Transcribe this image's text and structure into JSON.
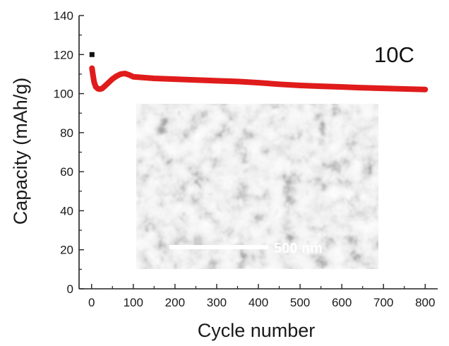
{
  "chart_data": {
    "type": "line",
    "xlabel": "Cycle number",
    "ylabel": "Capacity (mAh/g)",
    "xlim": [
      -30,
      830
    ],
    "ylim": [
      0,
      140
    ],
    "xticks": [
      0,
      100,
      200,
      300,
      400,
      500,
      600,
      700,
      800
    ],
    "yticks": [
      0,
      20,
      40,
      60,
      80,
      100,
      120,
      140
    ],
    "grid": false,
    "annotation": "10C",
    "series": [
      {
        "color": "#e01b1b",
        "x": [
          1,
          3,
          6,
          10,
          15,
          20,
          25,
          30,
          40,
          50,
          60,
          70,
          80,
          90,
          100,
          150,
          200,
          250,
          300,
          350,
          400,
          450,
          500,
          550,
          600,
          650,
          700,
          750,
          800
        ],
        "y": [
          113,
          110,
          106,
          103.5,
          102.5,
          102.3,
          102.6,
          103.5,
          105.5,
          107.5,
          109,
          110,
          110.3,
          109.6,
          108.6,
          107.8,
          107.4,
          107,
          106.6,
          106.2,
          105.6,
          104.8,
          104.2,
          103.8,
          103.4,
          103,
          102.7,
          102.4,
          102.1
        ]
      },
      {
        "color": "#111111",
        "x": [
          1
        ],
        "y": [
          120
        ]
      }
    ],
    "inset": {
      "type": "SEM micrograph",
      "scale_bar_label": "500 nm"
    }
  }
}
